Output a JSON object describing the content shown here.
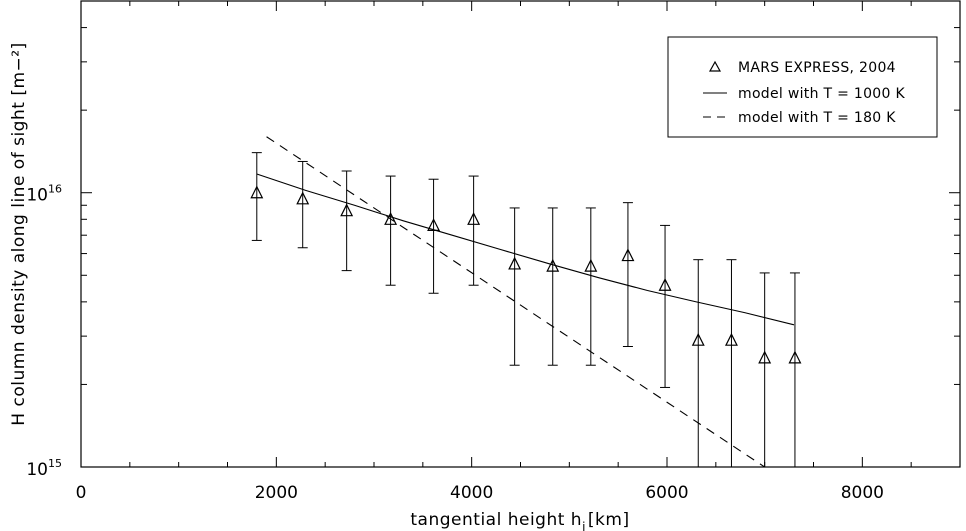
{
  "chart_data": {
    "type": "scatter",
    "xlabel_main": "tangential height h",
    "xlabel_sub": "i",
    "xlabel_unit": "[km]",
    "ylabel": "H column density along line of sight [m−²]",
    "xlim": [
      0,
      9000
    ],
    "ylim": [
      1000000000000000.0,
      5e+16
    ],
    "y_scale": "log",
    "x_ticks": [
      0,
      2000,
      4000,
      6000,
      8000
    ],
    "x_tick_labels": [
      "0",
      "2000",
      "4000",
      "6000",
      "8000"
    ],
    "y_ticks": [
      {
        "value": 1000000000000000.0,
        "base": "10",
        "exp": "15"
      },
      {
        "value": 1e+16,
        "base": "10",
        "exp": "16"
      }
    ],
    "grid": false,
    "legend_position": "top-right",
    "series": [
      {
        "name": "MARS EXPRESS, 2004",
        "kind": "triangles-with-errorbars",
        "x": [
          1800,
          2270,
          2720,
          3170,
          3610,
          4020,
          4440,
          4830,
          5220,
          5600,
          5980,
          6320,
          6660,
          7000,
          7310
        ],
        "y": [
          1e+16,
          9500000000000000.0,
          8600000000000000.0,
          8000000000000000.0,
          7600000000000000.0,
          8000000000000000.0,
          5500000000000000.0,
          5400000000000000.0,
          5400000000000000.0,
          5900000000000000.0,
          4600000000000000.0,
          2900000000000000.0,
          2900000000000000.0,
          2500000000000000.0,
          2500000000000000.0
        ],
        "y_upper": [
          1.4e+16,
          1.3e+16,
          1.2e+16,
          1.15e+16,
          1.12e+16,
          1.15e+16,
          8800000000000000.0,
          8800000000000000.0,
          8800000000000000.0,
          9200000000000000.0,
          7600000000000000.0,
          5700000000000000.0,
          5700000000000000.0,
          5100000000000000.0,
          5100000000000000.0
        ],
        "y_lower": [
          6700000000000000.0,
          6300000000000000.0,
          5200000000000000.0,
          4600000000000000.0,
          4300000000000000.0,
          4600000000000000.0,
          2350000000000000.0,
          2350000000000000.0,
          2350000000000000.0,
          2750000000000000.0,
          1950000000000000.0,
          1000000000000000.0,
          1000000000000000.0,
          1000000000000000.0,
          1000000000000000.0
        ]
      },
      {
        "name": "model with T = 1000 K",
        "kind": "solid-line",
        "x": [
          1800,
          2300,
          2800,
          3300,
          3800,
          4300,
          4800,
          5300,
          5800,
          6300,
          6800,
          7300
        ],
        "y": [
          1.17e+16,
          1.02e+16,
          9000000000000000.0,
          7900000000000000.0,
          7000000000000000.0,
          6200000000000000.0,
          5500000000000000.0,
          4900000000000000.0,
          4400000000000000.0,
          4000000000000000.0,
          3650000000000000.0,
          3300000000000000.0
        ]
      },
      {
        "name": "model with T = 180 K",
        "kind": "dashed-line",
        "x": [
          1900,
          7000
        ],
        "y": [
          1.6e+16,
          1000000000000000.0
        ]
      }
    ]
  }
}
